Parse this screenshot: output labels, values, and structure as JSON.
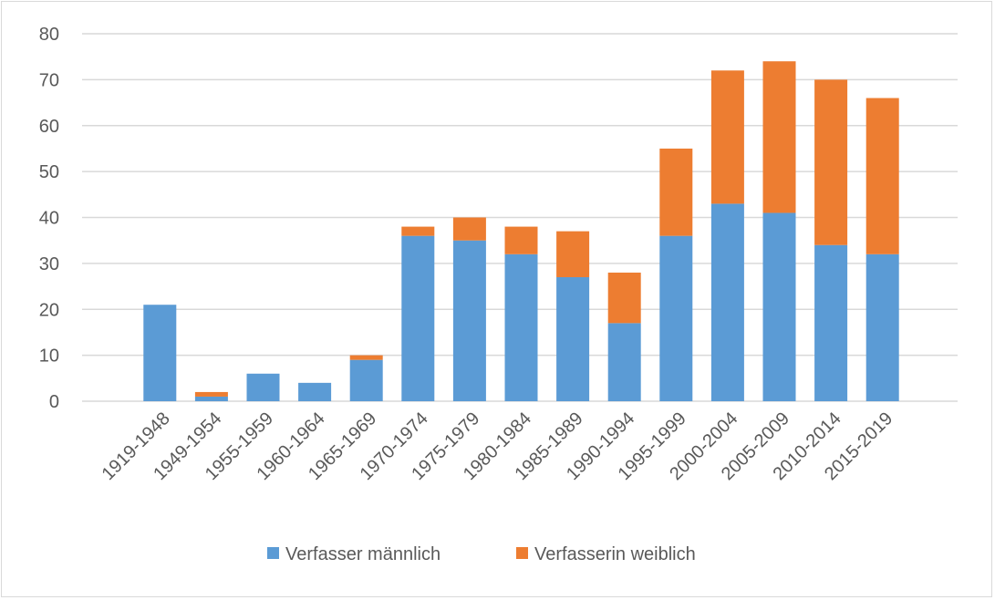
{
  "chart_data": {
    "type": "bar",
    "stacked": true,
    "title": "",
    "xlabel": "",
    "ylabel": "",
    "ylim": [
      0,
      80
    ],
    "yticks": [
      0,
      10,
      20,
      30,
      40,
      50,
      60,
      70,
      80
    ],
    "grid": true,
    "legend_placement": "bottom",
    "categories": [
      "1919-1948",
      "1949-1954",
      "1955-1959",
      "1960-1964",
      "1965-1969",
      "1970-1974",
      "1975-1979",
      "1980-1984",
      "1985-1989",
      "1990-1994",
      "1995-1999",
      "2000-2004",
      "2005-2009",
      "2010-2014",
      "2015-2019"
    ],
    "series": [
      {
        "name": "Verfasser männlich",
        "color": "#5b9bd5",
        "values": [
          21,
          1,
          6,
          4,
          9,
          36,
          35,
          32,
          27,
          17,
          36,
          43,
          41,
          34,
          32
        ]
      },
      {
        "name": "Verfasserin weiblich",
        "color": "#ed7d31",
        "values": [
          0,
          1,
          0,
          0,
          1,
          2,
          5,
          6,
          10,
          11,
          19,
          29,
          33,
          36,
          34
        ]
      }
    ]
  }
}
